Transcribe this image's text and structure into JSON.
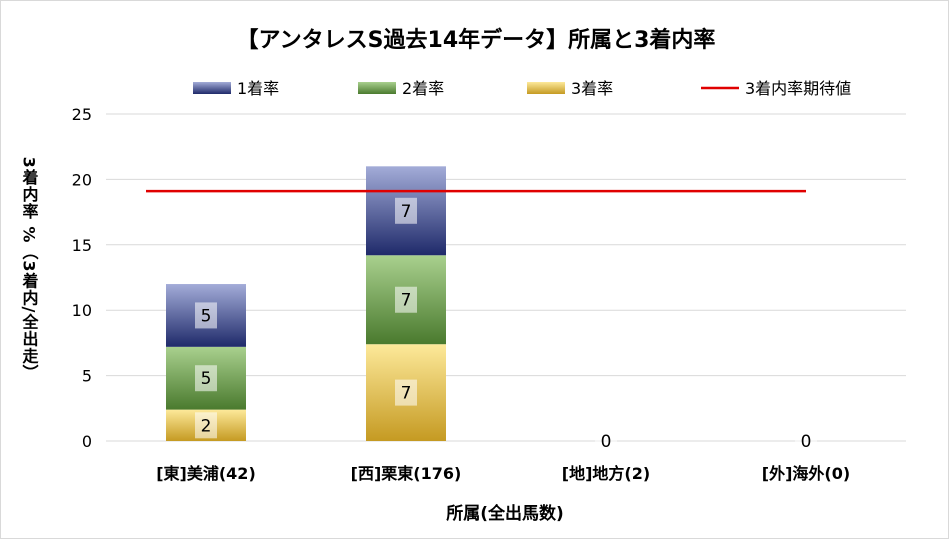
{
  "chart_data": {
    "type": "bar",
    "stacked": true,
    "title": "【アンタレスS過去14年データ】所属と3着内率",
    "xlabel": "所属(全出馬数)",
    "ylabel": "3着内率 %（3着内/全出走）",
    "ylim": [
      0,
      25
    ],
    "yticks": [
      0,
      5,
      10,
      15,
      20,
      25
    ],
    "grid": true,
    "legend_position": "top",
    "categories": [
      "[東]美浦(42)",
      "[西]栗東(176)",
      "[地]地方(2)",
      "[外]海外(0)"
    ],
    "series": [
      {
        "name": "3着率",
        "values": [
          2.4,
          7.4,
          0,
          0
        ],
        "labels": [
          "2",
          "7",
          "0",
          "0"
        ],
        "color_top": "#fde99a",
        "color_bottom": "#c59a22"
      },
      {
        "name": "2着率",
        "values": [
          4.8,
          6.8,
          0,
          0
        ],
        "labels": [
          "5",
          "7",
          "",
          ""
        ],
        "color_top": "#a9d08e",
        "color_bottom": "#4a7a2e"
      },
      {
        "name": "1着率",
        "values": [
          4.8,
          6.8,
          0,
          0
        ],
        "labels": [
          "5",
          "7",
          "",
          ""
        ],
        "color_top": "#a3acd8",
        "color_bottom": "#1f2a6a"
      }
    ],
    "legend_order": [
      "1着率",
      "2着率",
      "3着率",
      "3着内率期待値"
    ],
    "reference_line": {
      "name": "3着内率期待値",
      "value": 19.1,
      "color": "#e00000"
    }
  }
}
